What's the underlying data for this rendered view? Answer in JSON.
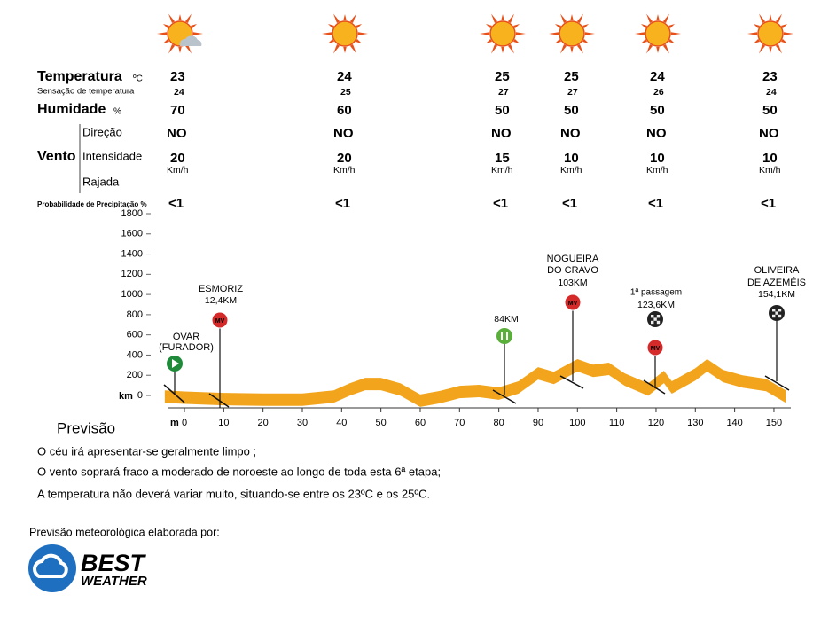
{
  "forecast": {
    "labels": {
      "temperature": "Temperatura",
      "temperature_unit": "ºC",
      "feels_like": "Sensação de temperatura",
      "humidity": "Humidade",
      "humidity_unit": "%",
      "wind": "Vento",
      "direction": "Direção",
      "intensity": "Intensidade",
      "gust": "Rajada",
      "precipitation": "Probabilidade de Precipitação %"
    },
    "columns": [
      {
        "temperature": 23,
        "feels_like": 24,
        "humidity": 70,
        "direction": "NO",
        "wind_speed": 20,
        "wind_unit": "Km/h",
        "precipitation": "<1"
      },
      {
        "temperature": 24,
        "feels_like": 25,
        "humidity": 60,
        "direction": "NO",
        "wind_speed": 20,
        "wind_unit": "Km/h",
        "precipitation": "<1"
      },
      {
        "temperature": 25,
        "feels_like": 27,
        "humidity": 50,
        "direction": "NO",
        "wind_speed": 15,
        "wind_unit": "Km/h",
        "precipitation": "<1"
      },
      {
        "temperature": 25,
        "feels_like": 27,
        "humidity": 50,
        "direction": "NO",
        "wind_speed": 10,
        "wind_unit": "Km/h",
        "precipitation": "<1"
      },
      {
        "temperature": 24,
        "feels_like": 26,
        "humidity": 50,
        "direction": "NO",
        "wind_speed": 10,
        "wind_unit": "Km/h",
        "precipitation": "<1"
      },
      {
        "temperature": 23,
        "feels_like": 24,
        "humidity": 50,
        "direction": "NO",
        "wind_speed": 10,
        "wind_unit": "Km/h",
        "precipitation": "<1"
      }
    ]
  },
  "chart_data": {
    "type": "area",
    "color": "#f2a51c",
    "x": [
      -5,
      0,
      10,
      20,
      30,
      38,
      42,
      46,
      50,
      55,
      60,
      65,
      70,
      75,
      80,
      85,
      90,
      94,
      100,
      104,
      108,
      112,
      118,
      122,
      124,
      130,
      133,
      137,
      142,
      148,
      153
    ],
    "values": [
      50,
      40,
      25,
      20,
      20,
      50,
      120,
      175,
      175,
      120,
      10,
      45,
      95,
      105,
      80,
      140,
      280,
      235,
      360,
      305,
      325,
      220,
      120,
      245,
      140,
      270,
      360,
      255,
      200,
      165,
      50
    ],
    "xlim": [
      -5,
      155
    ],
    "ylim": [
      0,
      1800
    ],
    "xticks": [
      0,
      10,
      20,
      30,
      40,
      50,
      60,
      70,
      80,
      90,
      100,
      110,
      120,
      130,
      140,
      150
    ],
    "yticks": [
      0,
      200,
      400,
      600,
      800,
      1000,
      1200,
      1400,
      1600,
      1800
    ],
    "x_unit_label": "m",
    "y_unit_label": "km",
    "route_markers": [
      {
        "lines": [
          "OVAR",
          "(FURADOR)"
        ]
      },
      {
        "lines": [
          "ESMORIZ"
        ],
        "km": "12,4KM",
        "icon_text": "MV"
      },
      {
        "km": "84KM"
      },
      {
        "lines": [
          "NOGUEIRA",
          "DO CRAVO"
        ],
        "km": "103KM",
        "icon_text": "MV"
      },
      {
        "lines": [
          "1ª passagem"
        ],
        "km": "123,6KM",
        "icon_text": "MV"
      },
      {
        "lines": [
          "OLIVEIRA",
          "DE AZEMÉIS"
        ],
        "km": "154,1KM"
      }
    ]
  },
  "forecast_text": {
    "title": "Previsão",
    "lines": [
      "O céu irá apresentar-se geralmente limpo ;",
      "O vento soprará fraco a moderado de noroeste ao longo de toda esta 6ª etapa;",
      "A temperatura não deverá variar muito, situando-se entre os 23ºC e os 25ºC."
    ]
  },
  "credit": "Previsão meteorológica elaborada por:",
  "logo": {
    "line1": "BEST",
    "line2": "WEATHER"
  }
}
